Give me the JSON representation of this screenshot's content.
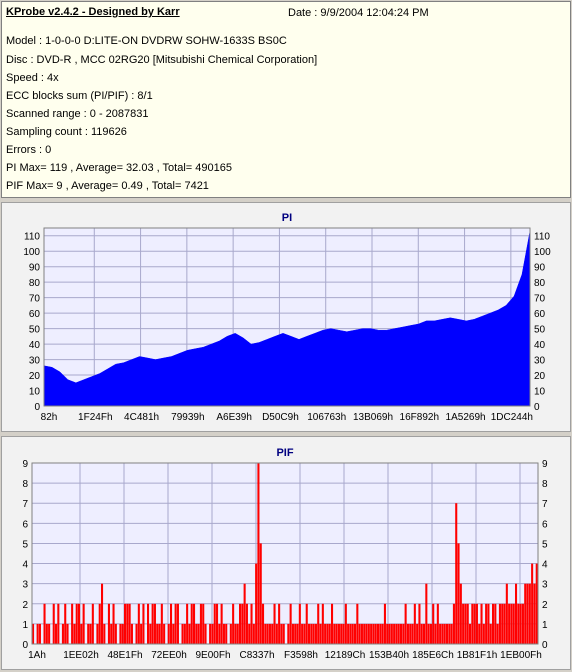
{
  "header": {
    "title": "KProbe v2.4.2 - Designed by Karr",
    "date": "Date : 9/9/2004 12:04:24 PM"
  },
  "info": {
    "model": "Model : 1-0-0-0 D:LITE-ON DVDRW SOHW-1633S BS0C",
    "disc": "Disc : DVD-R , MCC 02RG20   [Mitsubishi Chemical Corporation]",
    "speed": "Speed : 4x",
    "ecc": "ECC blocks sum (PI/PIF) : 8/1",
    "range": "Scanned range : 0 - 2087831",
    "sampling": "Sampling count : 119626",
    "errors": "Errors : 0",
    "pi": "PI Max= 119 , Average= 32.03 , Total= 490165",
    "pif": "PIF Max= 9 , Average= 0.49 , Total= 7421"
  },
  "colors": {
    "panel_bg": "#ffffee",
    "chart_bg": "#f2f2f2",
    "plot_bg": "#eeeeff",
    "grid": "#a8a8cc",
    "pi_fill": "#0000ff",
    "pif_fill": "#ff0000",
    "title_color": "#000080"
  },
  "chart_data": [
    {
      "type": "area",
      "title": "PI",
      "ylim": [
        0,
        115
      ],
      "yticks": [
        0,
        10,
        20,
        30,
        40,
        50,
        60,
        70,
        80,
        90,
        100,
        110
      ],
      "xtick_labels": [
        "82h",
        "1F24Fh",
        "4C481h",
        "79939h",
        "A6E39h",
        "D50C9h",
        "106763h",
        "13B069h",
        "16F892h",
        "1A5269h",
        "1DC244h"
      ],
      "grid": true,
      "values": [
        26,
        25,
        22,
        17,
        15,
        17,
        19,
        21,
        24,
        27,
        28,
        30,
        32,
        31,
        30,
        31,
        32,
        34,
        36,
        37,
        38,
        40,
        42,
        45,
        47,
        44,
        40,
        41,
        43,
        45,
        47,
        45,
        43,
        45,
        47,
        49,
        50,
        49,
        48,
        49,
        50,
        50,
        49,
        49,
        50,
        51,
        52,
        53,
        55,
        55,
        56,
        57,
        56,
        55,
        56,
        58,
        60,
        62,
        65,
        71,
        85,
        113
      ]
    },
    {
      "type": "bar",
      "title": "PIF",
      "ylim": [
        0,
        9
      ],
      "yticks": [
        0,
        1,
        2,
        3,
        4,
        5,
        6,
        7,
        8,
        9
      ],
      "xtick_labels": [
        "1Ah",
        "1EE02h",
        "48E1Fh",
        "72EE0h",
        "9E00Fh",
        "C8337h",
        "F3598h",
        "12189Ch",
        "153B40h",
        "185E6Ch",
        "1B81F1h",
        "1EB00Fh"
      ],
      "grid": true,
      "values": [
        1,
        0,
        1,
        1,
        0,
        2,
        1,
        1,
        0,
        2,
        1,
        2,
        0,
        1,
        2,
        1,
        0,
        2,
        1,
        2,
        2,
        1,
        2,
        0,
        1,
        1,
        2,
        0,
        1,
        2,
        3,
        1,
        0,
        2,
        1,
        2,
        1,
        0,
        1,
        1,
        2,
        2,
        2,
        1,
        0,
        1,
        2,
        1,
        2,
        0,
        2,
        1,
        2,
        2,
        1,
        1,
        2,
        1,
        0,
        1,
        2,
        1,
        2,
        2,
        0,
        1,
        1,
        2,
        1,
        2,
        2,
        1,
        1,
        2,
        2,
        1,
        0,
        1,
        1,
        2,
        2,
        1,
        2,
        1,
        1,
        0,
        1,
        2,
        1,
        1,
        2,
        2,
        3,
        2,
        1,
        2,
        1,
        4,
        9,
        5,
        2,
        1,
        1,
        1,
        1,
        2,
        1,
        2,
        1,
        1,
        0,
        1,
        2,
        1,
        1,
        1,
        2,
        1,
        1,
        2,
        1,
        1,
        1,
        1,
        2,
        1,
        2,
        1,
        1,
        1,
        2,
        1,
        1,
        1,
        1,
        1,
        2,
        1,
        1,
        1,
        1,
        2,
        1,
        1,
        1,
        1,
        1,
        1,
        1,
        1,
        1,
        1,
        1,
        2,
        1,
        1,
        1,
        1,
        1,
        1,
        1,
        1,
        2,
        1,
        1,
        1,
        2,
        1,
        2,
        1,
        1,
        3,
        1,
        1,
        2,
        1,
        2,
        1,
        1,
        1,
        1,
        1,
        1,
        2,
        7,
        5,
        3,
        2,
        2,
        2,
        1,
        2,
        2,
        2,
        1,
        2,
        1,
        2,
        2,
        1,
        2,
        2,
        1,
        2,
        2,
        2,
        3,
        2,
        2,
        2,
        3,
        2,
        2,
        2,
        3,
        3,
        3,
        4,
        3,
        4
      ]
    }
  ]
}
